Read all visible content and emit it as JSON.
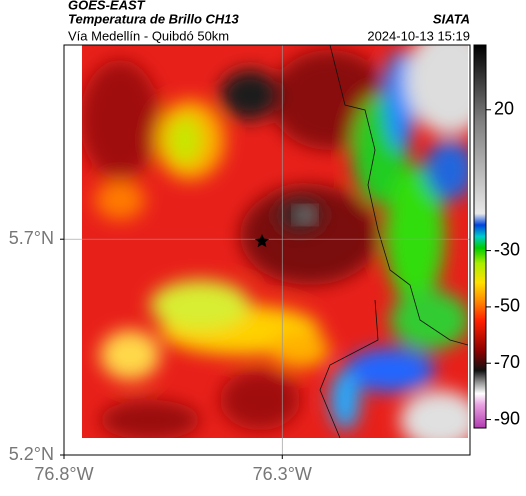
{
  "header": {
    "title": "GOES-EAST",
    "subtitle": "Temperatura de Brillo CH13",
    "route": "Vía Medellín - Quibdó 50km",
    "source": "SIATA",
    "timestamp": "2024-10-13 15:19"
  },
  "map": {
    "xlim": [
      -76.8,
      -75.87
    ],
    "ylim": [
      5.2,
      6.15
    ],
    "xticks": [
      {
        "value": -76.8,
        "label": "76.8°W"
      },
      {
        "value": -76.3,
        "label": "76.3°W"
      }
    ],
    "yticks": [
      {
        "value": 5.2,
        "label": "5.2°N"
      },
      {
        "value": 5.7,
        "label": "5.7°N"
      }
    ],
    "grid": true
  },
  "colorbar": {
    "lim": [
      -93,
      43
    ],
    "ticks": [
      20,
      -30,
      -50,
      -70,
      -90
    ]
  }
}
